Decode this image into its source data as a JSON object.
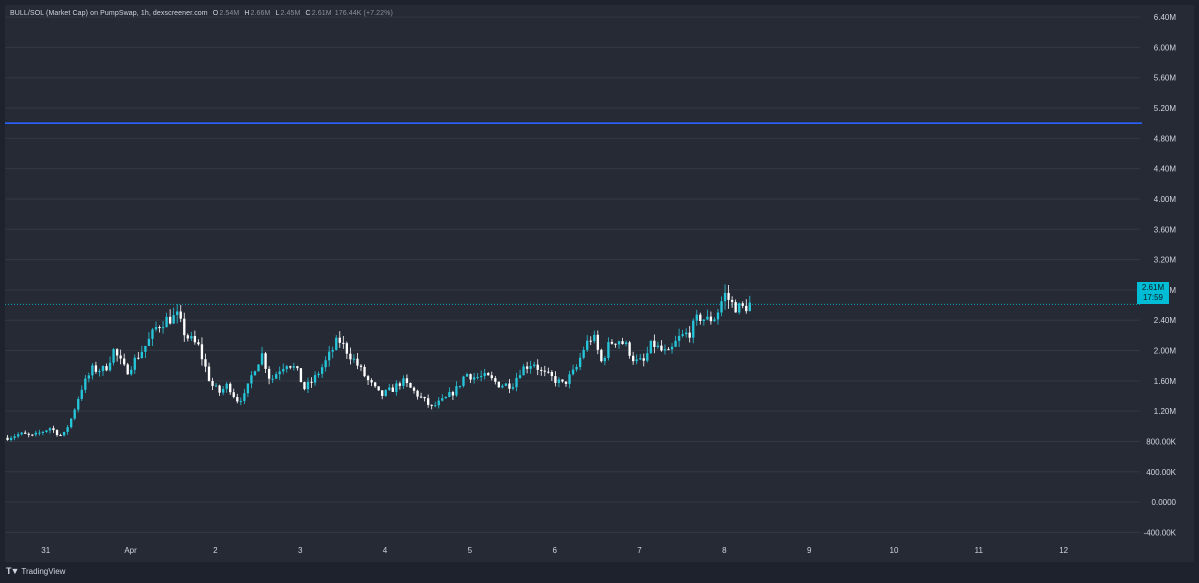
{
  "header": {
    "title": "BULL/SOL (Market Cap) on PumpSwap, 1h, dexscreener.com",
    "open_label": "O",
    "open_value": "2.54M",
    "high_label": "H",
    "high_value": "2.66M",
    "low_label": "L",
    "low_value": "2.45M",
    "close_label": "C",
    "close_value": "2.61M",
    "change": "176.44K (+7.22%)"
  },
  "price_label": {
    "value": "2.61M",
    "countdown": "17:59"
  },
  "footer": {
    "brand": "TradingView"
  },
  "colors": {
    "up": "#26c6da",
    "down": "#ffffff",
    "hline": "#2962ff",
    "last": "#00bcd4"
  },
  "chart_data": {
    "type": "candlestick",
    "y_ticks": [
      {
        "v": 6400000,
        "label": "6.40M"
      },
      {
        "v": 6000000,
        "label": "6.00M"
      },
      {
        "v": 5600000,
        "label": "5.60M"
      },
      {
        "v": 5200000,
        "label": "5.20M"
      },
      {
        "v": 4800000,
        "label": "4.80M"
      },
      {
        "v": 4400000,
        "label": "4.40M"
      },
      {
        "v": 4000000,
        "label": "4.00M"
      },
      {
        "v": 3600000,
        "label": "3.60M"
      },
      {
        "v": 3200000,
        "label": "3.20M"
      },
      {
        "v": 2800000,
        "label": "2.80M"
      },
      {
        "v": 2400000,
        "label": "2.40M"
      },
      {
        "v": 2000000,
        "label": "2.00M"
      },
      {
        "v": 1600000,
        "label": "1.60M"
      },
      {
        "v": 1200000,
        "label": "1.20M"
      },
      {
        "v": 800000,
        "label": "800.00K"
      },
      {
        "v": 400000,
        "label": "400.00K"
      },
      {
        "v": 0,
        "label": "0.0000"
      },
      {
        "v": -400000,
        "label": "-400.00K"
      }
    ],
    "x_ticks": [
      {
        "day": 0,
        "label": "31"
      },
      {
        "day": 1,
        "label": "Apr"
      },
      {
        "day": 2,
        "label": "2"
      },
      {
        "day": 3,
        "label": "3"
      },
      {
        "day": 4,
        "label": "4"
      },
      {
        "day": 5,
        "label": "5"
      },
      {
        "day": 6,
        "label": "6"
      },
      {
        "day": 7,
        "label": "7"
      },
      {
        "day": 8,
        "label": "8"
      },
      {
        "day": 9,
        "label": "9"
      },
      {
        "day": 10,
        "label": "10"
      },
      {
        "day": 11,
        "label": "11"
      },
      {
        "day": 12,
        "label": "12"
      }
    ],
    "x_range_days": [
      -0.48,
      12.9
    ],
    "y_range": [
      -500000,
      6560000
    ],
    "horizontal_line": 5000000,
    "last_price": 2610000,
    "anchors": [
      [
        -0.45,
        0.85
      ],
      [
        -0.3,
        0.9
      ],
      [
        -0.15,
        0.87
      ],
      [
        0.05,
        0.98
      ],
      [
        0.2,
        0.86
      ],
      [
        0.3,
        1.1
      ],
      [
        0.42,
        1.5
      ],
      [
        0.55,
        1.75
      ],
      [
        0.7,
        1.75
      ],
      [
        0.8,
        2.0
      ],
      [
        0.95,
        1.72
      ],
      [
        1.1,
        1.95
      ],
      [
        1.2,
        2.1
      ],
      [
        1.3,
        2.3
      ],
      [
        1.4,
        2.4
      ],
      [
        1.55,
        2.45
      ],
      [
        1.65,
        2.2
      ],
      [
        1.8,
        2.05
      ],
      [
        1.95,
        1.55
      ],
      [
        2.05,
        1.45
      ],
      [
        2.15,
        1.55
      ],
      [
        2.25,
        1.35
      ],
      [
        2.35,
        1.4
      ],
      [
        2.45,
        1.75
      ],
      [
        2.55,
        1.95
      ],
      [
        2.65,
        1.6
      ],
      [
        2.75,
        1.75
      ],
      [
        2.85,
        1.85
      ],
      [
        2.95,
        1.75
      ],
      [
        3.05,
        1.5
      ],
      [
        3.15,
        1.6
      ],
      [
        3.3,
        1.85
      ],
      [
        3.45,
        2.15
      ],
      [
        3.55,
        2.0
      ],
      [
        3.65,
        1.85
      ],
      [
        3.8,
        1.6
      ],
      [
        3.95,
        1.4
      ],
      [
        4.1,
        1.5
      ],
      [
        4.2,
        1.6
      ],
      [
        4.35,
        1.45
      ],
      [
        4.45,
        1.35
      ],
      [
        4.55,
        1.25
      ],
      [
        4.7,
        1.35
      ],
      [
        4.85,
        1.5
      ],
      [
        4.95,
        1.7
      ],
      [
        5.05,
        1.65
      ],
      [
        5.2,
        1.65
      ],
      [
        5.35,
        1.55
      ],
      [
        5.5,
        1.55
      ],
      [
        5.6,
        1.75
      ],
      [
        5.75,
        1.85
      ],
      [
        5.85,
        1.7
      ],
      [
        5.95,
        1.65
      ],
      [
        6.1,
        1.55
      ],
      [
        6.25,
        1.75
      ],
      [
        6.35,
        2.05
      ],
      [
        6.45,
        2.2
      ],
      [
        6.55,
        1.85
      ],
      [
        6.65,
        2.1
      ],
      [
        6.75,
        2.15
      ],
      [
        6.85,
        2.05
      ],
      [
        6.95,
        1.85
      ],
      [
        7.05,
        1.85
      ],
      [
        7.15,
        2.1
      ],
      [
        7.25,
        2.0
      ],
      [
        7.35,
        1.95
      ],
      [
        7.45,
        2.15
      ],
      [
        7.6,
        2.25
      ],
      [
        7.7,
        2.45
      ],
      [
        7.8,
        2.4
      ],
      [
        7.9,
        2.45
      ],
      [
        8.0,
        2.75
      ],
      [
        8.1,
        2.6
      ],
      [
        8.2,
        2.55
      ],
      [
        8.3,
        2.61
      ]
    ]
  }
}
